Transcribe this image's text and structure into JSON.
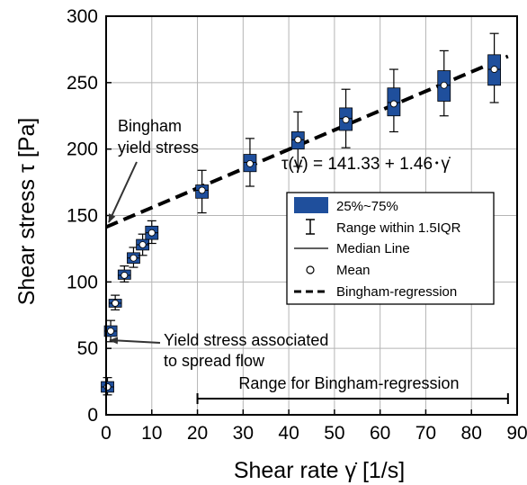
{
  "chart_data": {
    "type": "box",
    "xlabel": "Shear rate γ̇ [1/s]",
    "ylabel": "Shear stress τ [Pa]",
    "xlim": [
      0,
      90
    ],
    "ylim": [
      0,
      300
    ],
    "xticks": [
      0,
      10,
      20,
      30,
      40,
      50,
      60,
      70,
      80,
      90
    ],
    "yticks": [
      0,
      50,
      100,
      150,
      200,
      250,
      300
    ],
    "grid": true,
    "legend_position": "center-right",
    "colors": {
      "box": "#1f4f9c",
      "mean_marker": "#ffffff"
    },
    "boxes": [
      {
        "x": 0.3,
        "whisker_low": 15,
        "q1": 17,
        "median": 21,
        "q3": 25,
        "whisker_high": 28,
        "mean": 21
      },
      {
        "x": 1.0,
        "whisker_low": 55,
        "q1": 59,
        "median": 63,
        "q3": 67,
        "whisker_high": 71,
        "mean": 63
      },
      {
        "x": 2.0,
        "whisker_low": 79,
        "q1": 81,
        "median": 84,
        "q3": 87,
        "whisker_high": 90,
        "mean": 84
      },
      {
        "x": 4.0,
        "whisker_low": 100,
        "q1": 102,
        "median": 105,
        "q3": 109,
        "whisker_high": 112,
        "mean": 105
      },
      {
        "x": 6.0,
        "whisker_low": 111,
        "q1": 114,
        "median": 118,
        "q3": 122,
        "whisker_high": 126,
        "mean": 118
      },
      {
        "x": 8.0,
        "whisker_low": 120,
        "q1": 124,
        "median": 128,
        "q3": 132,
        "whisker_high": 136,
        "mean": 128
      },
      {
        "x": 10.0,
        "whisker_low": 129,
        "q1": 132,
        "median": 137,
        "q3": 142,
        "whisker_high": 146,
        "mean": 137
      },
      {
        "x": 21.0,
        "whisker_low": 152,
        "q1": 163,
        "median": 169,
        "q3": 173,
        "whisker_high": 184,
        "mean": 169
      },
      {
        "x": 31.5,
        "whisker_low": 172,
        "q1": 183,
        "median": 190,
        "q3": 196,
        "whisker_high": 208,
        "mean": 189
      },
      {
        "x": 42.0,
        "whisker_low": 187,
        "q1": 200,
        "median": 207,
        "q3": 213,
        "whisker_high": 228,
        "mean": 207
      },
      {
        "x": 52.5,
        "whisker_low": 201,
        "q1": 214,
        "median": 223,
        "q3": 231,
        "whisker_high": 245,
        "mean": 222
      },
      {
        "x": 63.0,
        "whisker_low": 213,
        "q1": 225,
        "median": 235,
        "q3": 246,
        "whisker_high": 260,
        "mean": 234
      },
      {
        "x": 74.0,
        "whisker_low": 225,
        "q1": 236,
        "median": 248,
        "q3": 259,
        "whisker_high": 274,
        "mean": 248
      },
      {
        "x": 85.0,
        "whisker_low": 235,
        "q1": 248,
        "median": 260,
        "q3": 271,
        "whisker_high": 287,
        "mean": 260
      }
    ],
    "regression": {
      "intercept": 141.33,
      "slope": 1.46,
      "x_range": [
        0,
        88
      ],
      "label": "τ(γ̇) = 141.33 + 1.46･γ̇"
    },
    "regression_range": {
      "x_range": [
        20,
        88
      ],
      "label": "Range for Bingham-regression"
    },
    "legend": [
      {
        "key": "box",
        "label": "25%~75%"
      },
      {
        "key": "whisker",
        "label": "Range within 1.5IQR"
      },
      {
        "key": "median",
        "label": "Median Line"
      },
      {
        "key": "mean",
        "label": "Mean"
      },
      {
        "key": "regression",
        "label": "Bingham-regression"
      }
    ],
    "annotations": {
      "bingham_yield_line1": "Bingham",
      "bingham_yield_line2": "yield stress",
      "spread_yield_line1": "Yield stress associated",
      "spread_yield_line2": "to spread flow"
    }
  }
}
